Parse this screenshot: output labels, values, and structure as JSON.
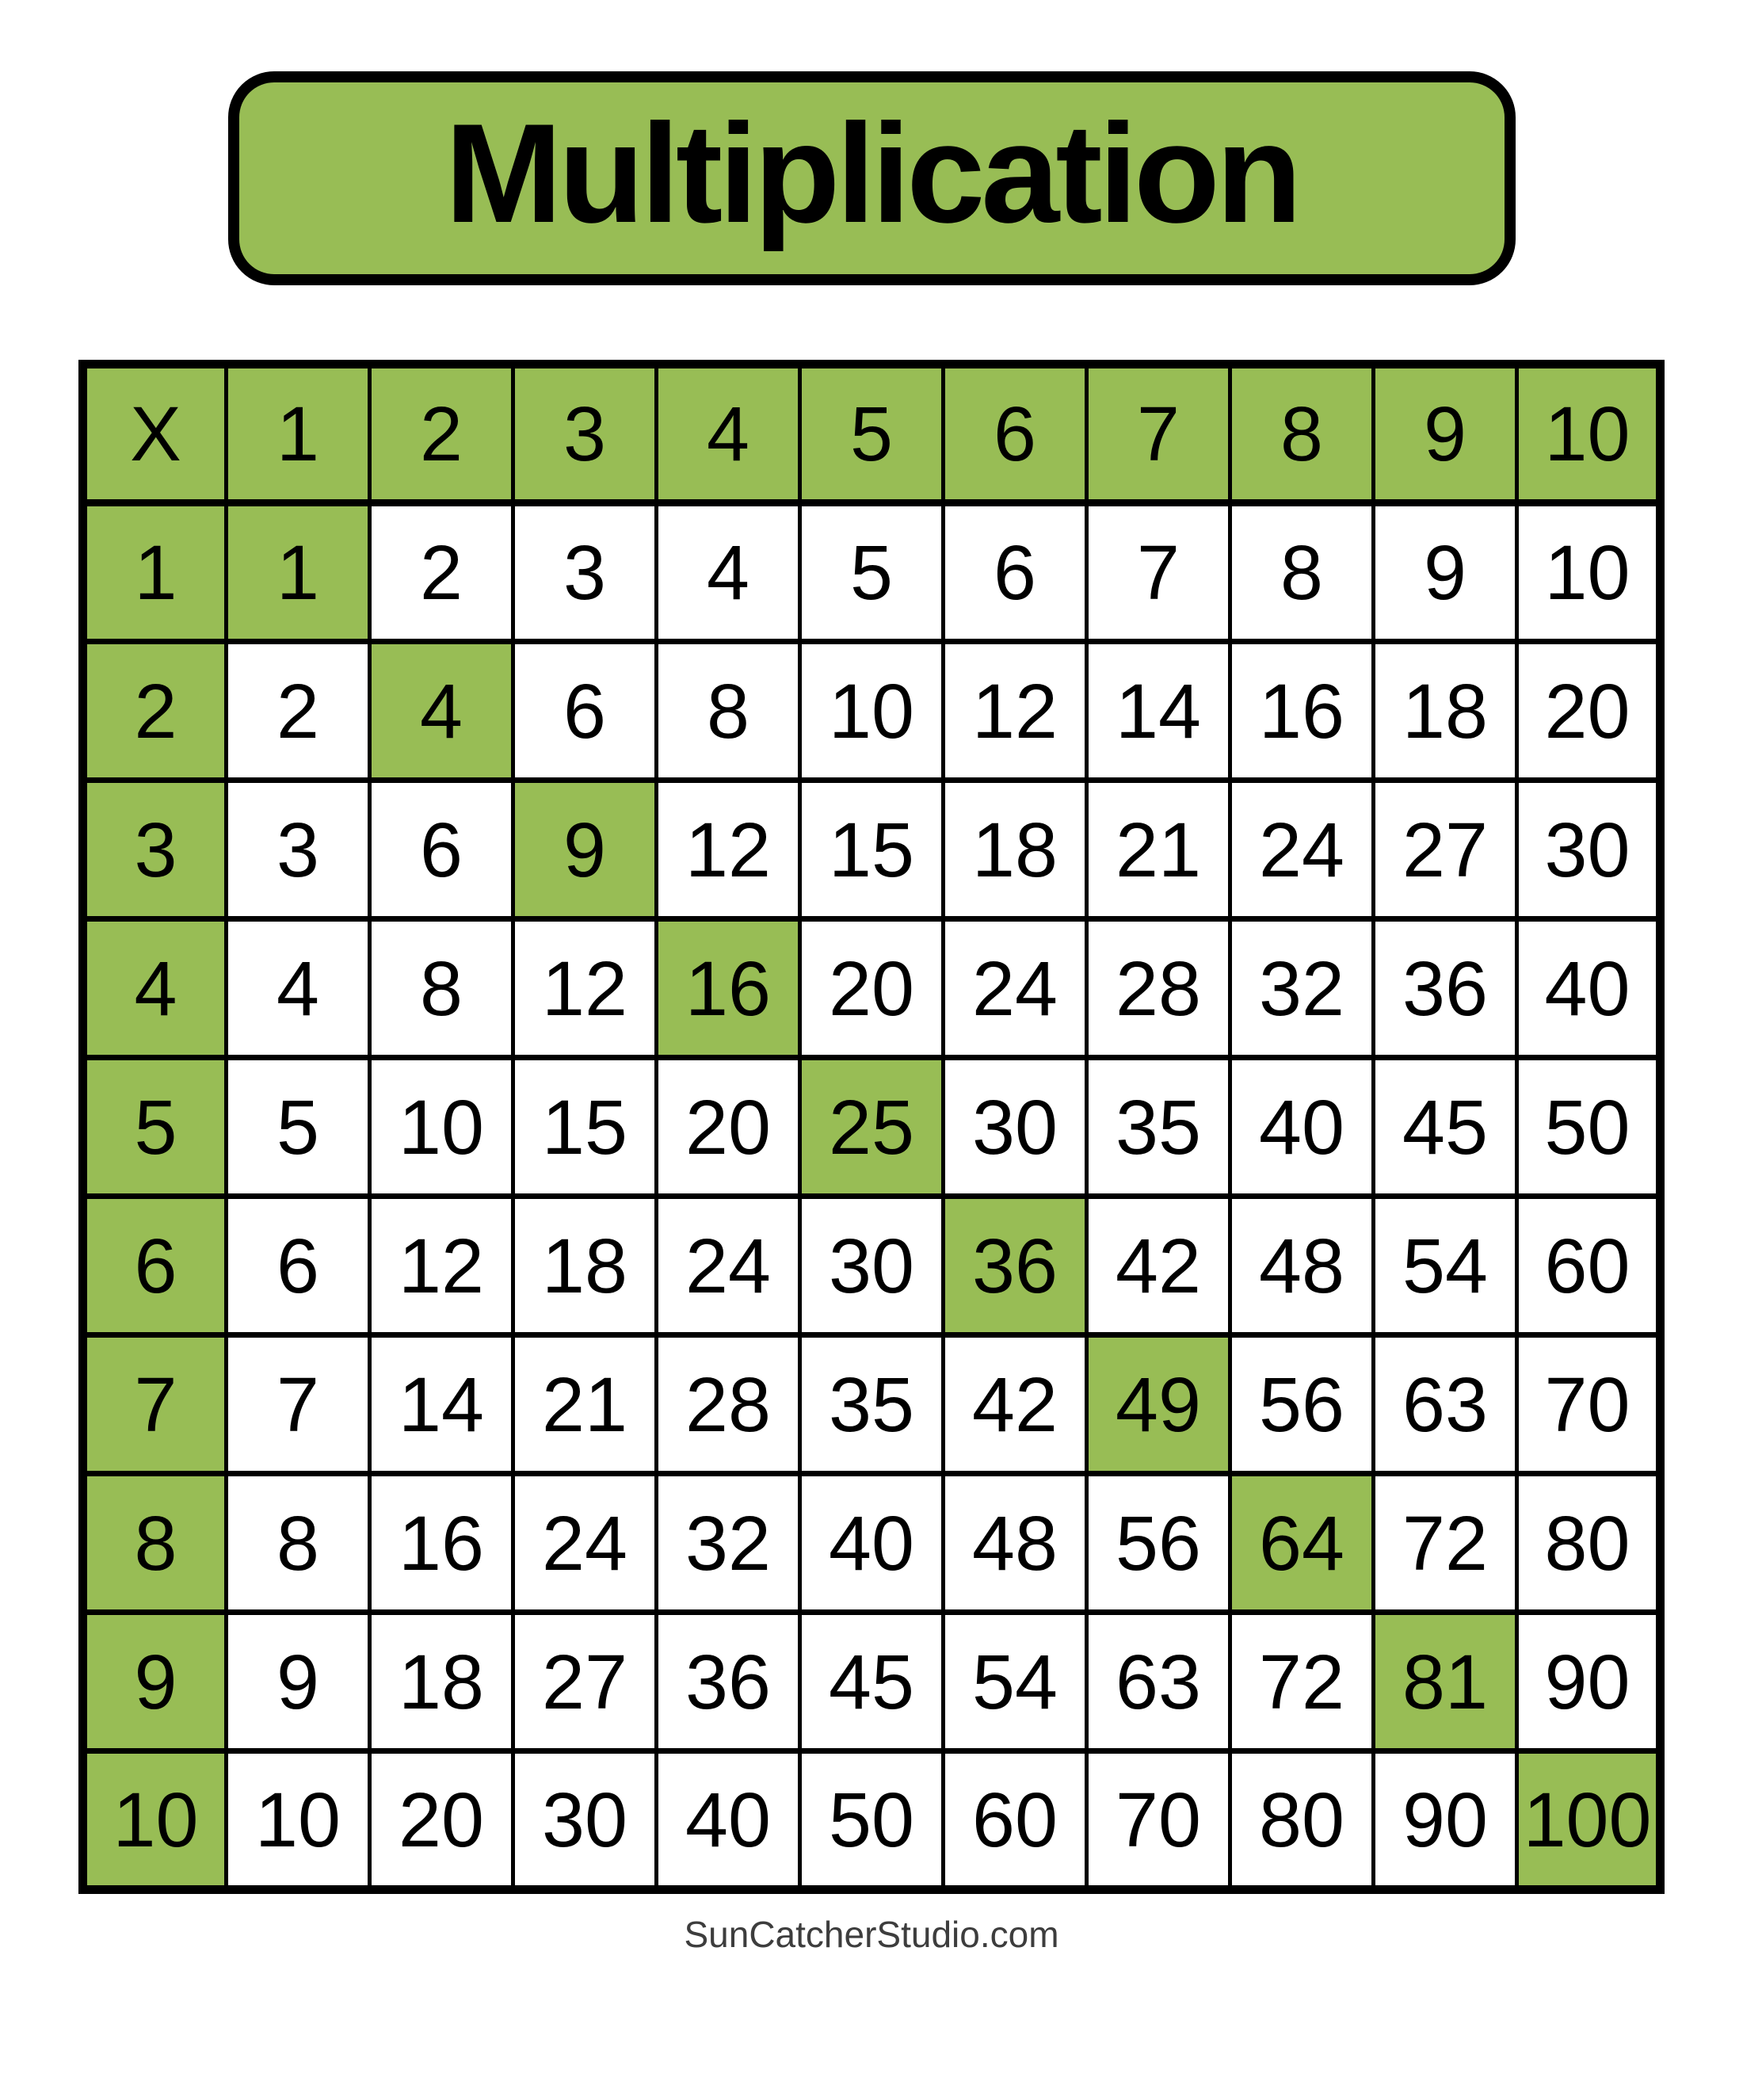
{
  "title": "Multiplication",
  "footer": {
    "text": "SunCatcherStudio.com"
  },
  "colors": {
    "accent_green": "#98BD55",
    "table_border": "#000000",
    "text": "#000000",
    "footer_text": "#3D3D3D",
    "page_background": "#FFFFFF"
  },
  "chart_data": {
    "type": "table",
    "title": "Multiplication",
    "operator_symbol": "X",
    "column_headers": [
      1,
      2,
      3,
      4,
      5,
      6,
      7,
      8,
      9,
      10
    ],
    "row_headers": [
      1,
      2,
      3,
      4,
      5,
      6,
      7,
      8,
      9,
      10
    ],
    "rows": [
      [
        1,
        2,
        3,
        4,
        5,
        6,
        7,
        8,
        9,
        10
      ],
      [
        2,
        4,
        6,
        8,
        10,
        12,
        14,
        16,
        18,
        20
      ],
      [
        3,
        6,
        9,
        12,
        15,
        18,
        21,
        24,
        27,
        30
      ],
      [
        4,
        8,
        12,
        16,
        20,
        24,
        28,
        32,
        36,
        40
      ],
      [
        5,
        10,
        15,
        20,
        25,
        30,
        35,
        40,
        45,
        50
      ],
      [
        6,
        12,
        18,
        24,
        30,
        36,
        42,
        48,
        54,
        60
      ],
      [
        7,
        14,
        21,
        28,
        35,
        42,
        49,
        56,
        63,
        70
      ],
      [
        8,
        16,
        24,
        32,
        40,
        48,
        56,
        64,
        72,
        80
      ],
      [
        9,
        18,
        27,
        36,
        45,
        54,
        63,
        72,
        81,
        90
      ],
      [
        10,
        20,
        30,
        40,
        50,
        60,
        70,
        80,
        90,
        100
      ]
    ],
    "highlighted_products": [
      1,
      4,
      9,
      16,
      25,
      36,
      49,
      64,
      81,
      100
    ],
    "layout_hints": {
      "header_row_background": "green",
      "header_column_background": "green",
      "diagonal_squares_background": "green",
      "grid": "on"
    }
  }
}
